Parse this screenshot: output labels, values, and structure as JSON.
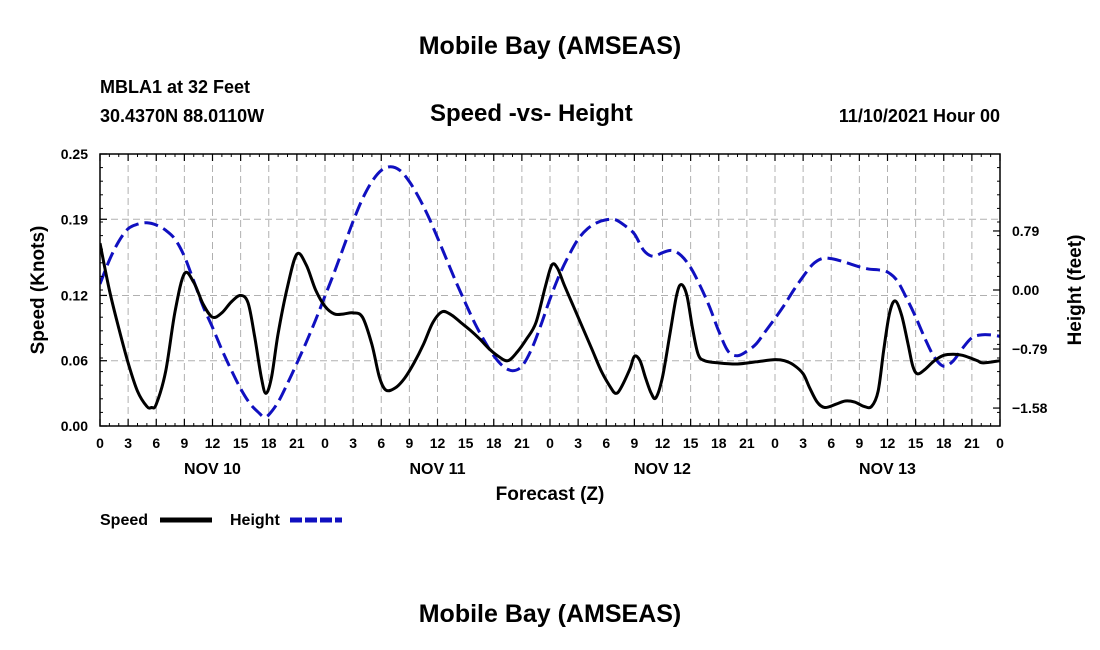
{
  "header": {
    "title": "Mobile Bay (AMSEAS)",
    "station": "MBLA1 at 32 Feet",
    "coords": "30.4370N  88.0110W",
    "run": "11/10/2021 Hour 00"
  },
  "footer": {
    "title": "Mobile Bay (AMSEAS)"
  },
  "chart_data": {
    "type": "line",
    "title": "Speed -vs- Height",
    "xlabel": "Forecast (Z)",
    "ylabel": "Speed (Knots)",
    "y2label": "Height (feet)",
    "xlim": [
      0,
      96
    ],
    "ylim": [
      0,
      0.25
    ],
    "y2lim": [
      -1.82,
      1.82
    ],
    "x_ticks": [
      0,
      3,
      6,
      9,
      12,
      15,
      18,
      21,
      24,
      27,
      30,
      33,
      36,
      39,
      42,
      45,
      48,
      51,
      54,
      57,
      60,
      63,
      66,
      69,
      72,
      75,
      78,
      81,
      84,
      87,
      90,
      93,
      96
    ],
    "x_tick_labels": [
      "0",
      "3",
      "6",
      "9",
      "12",
      "15",
      "18",
      "21",
      "0",
      "3",
      "6",
      "9",
      "12",
      "15",
      "18",
      "21",
      "0",
      "3",
      "6",
      "9",
      "12",
      "15",
      "18",
      "21",
      "0",
      "3",
      "6",
      "9",
      "12",
      "15",
      "18",
      "21",
      "0"
    ],
    "day_labels": [
      {
        "x": 12,
        "label": "NOV 10"
      },
      {
        "x": 36,
        "label": "NOV 11"
      },
      {
        "x": 60,
        "label": "NOV 12"
      },
      {
        "x": 84,
        "label": "NOV 13"
      }
    ],
    "y_ticks": [
      0.0,
      0.06,
      0.12,
      0.19,
      0.25
    ],
    "y_tick_labels": [
      "0.00",
      "0.06",
      "0.12",
      "0.19",
      "0.25"
    ],
    "y2_ticks": [
      -1.58,
      -0.79,
      0.0,
      0.79
    ],
    "y2_tick_labels": [
      "−1.58",
      "−0.79",
      "0.00",
      "0.79"
    ],
    "grid": true,
    "series": [
      {
        "name": "Speed",
        "axis": "left",
        "color": "#000000",
        "style": "solid",
        "points": [
          [
            0,
            0.168
          ],
          [
            1,
            0.125
          ],
          [
            2,
            0.09
          ],
          [
            3,
            0.058
          ],
          [
            4,
            0.032
          ],
          [
            5,
            0.018
          ],
          [
            5.5,
            0.017
          ],
          [
            6,
            0.02
          ],
          [
            7,
            0.05
          ],
          [
            8,
            0.105
          ],
          [
            9,
            0.14
          ],
          [
            10,
            0.132
          ],
          [
            11,
            0.112
          ],
          [
            12,
            0.1
          ],
          [
            13,
            0.104
          ],
          [
            14,
            0.114
          ],
          [
            15,
            0.12
          ],
          [
            15.8,
            0.113
          ],
          [
            16.5,
            0.082
          ],
          [
            17.2,
            0.045
          ],
          [
            17.7,
            0.03
          ],
          [
            18.3,
            0.045
          ],
          [
            19,
            0.085
          ],
          [
            20,
            0.128
          ],
          [
            21,
            0.158
          ],
          [
            22,
            0.148
          ],
          [
            23,
            0.125
          ],
          [
            24,
            0.11
          ],
          [
            25,
            0.103
          ],
          [
            26,
            0.103
          ],
          [
            27,
            0.104
          ],
          [
            28,
            0.1
          ],
          [
            29,
            0.075
          ],
          [
            29.8,
            0.045
          ],
          [
            30.5,
            0.033
          ],
          [
            31.5,
            0.035
          ],
          [
            32.5,
            0.044
          ],
          [
            33.5,
            0.058
          ],
          [
            34.5,
            0.075
          ],
          [
            35.5,
            0.095
          ],
          [
            36.5,
            0.105
          ],
          [
            37.5,
            0.102
          ],
          [
            38.5,
            0.095
          ],
          [
            39.5,
            0.088
          ],
          [
            40.5,
            0.08
          ],
          [
            41.5,
            0.071
          ],
          [
            42.5,
            0.064
          ],
          [
            43.5,
            0.06
          ],
          [
            44.5,
            0.068
          ],
          [
            45.5,
            0.08
          ],
          [
            46.5,
            0.095
          ],
          [
            47.5,
            0.128
          ],
          [
            48.2,
            0.148
          ],
          [
            48.8,
            0.145
          ],
          [
            49.5,
            0.13
          ],
          [
            50.5,
            0.11
          ],
          [
            51.5,
            0.09
          ],
          [
            52.5,
            0.07
          ],
          [
            53.5,
            0.05
          ],
          [
            54.5,
            0.035
          ],
          [
            55,
            0.03
          ],
          [
            55.5,
            0.034
          ],
          [
            56.5,
            0.052
          ],
          [
            57,
            0.064
          ],
          [
            57.6,
            0.06
          ],
          [
            58.2,
            0.044
          ],
          [
            58.8,
            0.03
          ],
          [
            59.3,
            0.026
          ],
          [
            60,
            0.045
          ],
          [
            60.8,
            0.085
          ],
          [
            61.5,
            0.12
          ],
          [
            62,
            0.13
          ],
          [
            62.6,
            0.12
          ],
          [
            63.2,
            0.09
          ],
          [
            63.8,
            0.066
          ],
          [
            64.5,
            0.06
          ],
          [
            66,
            0.058
          ],
          [
            68,
            0.057
          ],
          [
            70,
            0.059
          ],
          [
            72,
            0.061
          ],
          [
            73,
            0.06
          ],
          [
            74,
            0.056
          ],
          [
            75,
            0.048
          ],
          [
            75.7,
            0.035
          ],
          [
            76.5,
            0.022
          ],
          [
            77.3,
            0.017
          ],
          [
            78.5,
            0.02
          ],
          [
            79.5,
            0.023
          ],
          [
            80.5,
            0.022
          ],
          [
            81.5,
            0.018
          ],
          [
            82.3,
            0.018
          ],
          [
            83,
            0.032
          ],
          [
            83.6,
            0.07
          ],
          [
            84.2,
            0.103
          ],
          [
            84.8,
            0.115
          ],
          [
            85.5,
            0.102
          ],
          [
            86.2,
            0.075
          ],
          [
            86.7,
            0.055
          ],
          [
            87.2,
            0.048
          ],
          [
            88,
            0.052
          ],
          [
            89,
            0.06
          ],
          [
            90,
            0.065
          ],
          [
            91,
            0.066
          ],
          [
            92,
            0.065
          ],
          [
            93,
            0.062
          ],
          [
            93.6,
            0.06
          ],
          [
            94.2,
            0.058
          ],
          [
            96,
            0.06
          ]
        ]
      },
      {
        "name": "Height",
        "axis": "right",
        "color": "#1010c0",
        "style": "dashed",
        "points": [
          [
            0,
            0.08
          ],
          [
            1,
            0.4
          ],
          [
            2,
            0.65
          ],
          [
            3,
            0.82
          ],
          [
            4,
            0.88
          ],
          [
            5,
            0.9
          ],
          [
            6,
            0.87
          ],
          [
            7,
            0.8
          ],
          [
            8,
            0.68
          ],
          [
            9,
            0.45
          ],
          [
            10,
            0.12
          ],
          [
            11,
            -0.22
          ],
          [
            12,
            -0.5
          ],
          [
            13,
            -0.8
          ],
          [
            14,
            -1.07
          ],
          [
            15,
            -1.32
          ],
          [
            16,
            -1.52
          ],
          [
            17,
            -1.65
          ],
          [
            17.5,
            -1.7
          ],
          [
            18,
            -1.67
          ],
          [
            19,
            -1.5
          ],
          [
            20,
            -1.25
          ],
          [
            21,
            -0.98
          ],
          [
            22,
            -0.7
          ],
          [
            23,
            -0.4
          ],
          [
            24,
            -0.08
          ],
          [
            25,
            0.24
          ],
          [
            26,
            0.58
          ],
          [
            27,
            0.92
          ],
          [
            28,
            1.22
          ],
          [
            29,
            1.45
          ],
          [
            30,
            1.6
          ],
          [
            31,
            1.65
          ],
          [
            32,
            1.6
          ],
          [
            33,
            1.45
          ],
          [
            34,
            1.24
          ],
          [
            35,
            0.99
          ],
          [
            36,
            0.7
          ],
          [
            37,
            0.4
          ],
          [
            38,
            0.1
          ],
          [
            39,
            -0.18
          ],
          [
            40,
            -0.45
          ],
          [
            41,
            -0.68
          ],
          [
            42,
            -0.88
          ],
          [
            43,
            -1.02
          ],
          [
            44,
            -1.08
          ],
          [
            45,
            -1.02
          ],
          [
            46,
            -0.8
          ],
          [
            47,
            -0.48
          ],
          [
            48,
            -0.12
          ],
          [
            49,
            0.2
          ],
          [
            50,
            0.46
          ],
          [
            51,
            0.68
          ],
          [
            52,
            0.82
          ],
          [
            53,
            0.9
          ],
          [
            54,
            0.94
          ],
          [
            55,
            0.94
          ],
          [
            56,
            0.86
          ],
          [
            57,
            0.75
          ],
          [
            58,
            0.53
          ],
          [
            59,
            0.45
          ],
          [
            60,
            0.5
          ],
          [
            61,
            0.53
          ],
          [
            62,
            0.46
          ],
          [
            63,
            0.3
          ],
          [
            64,
            0.06
          ],
          [
            65,
            -0.22
          ],
          [
            66,
            -0.55
          ],
          [
            67,
            -0.82
          ],
          [
            68,
            -0.88
          ],
          [
            69,
            -0.82
          ],
          [
            70,
            -0.72
          ],
          [
            71,
            -0.55
          ],
          [
            72,
            -0.38
          ],
          [
            73,
            -0.2
          ],
          [
            74,
            0
          ],
          [
            75,
            0.18
          ],
          [
            76,
            0.34
          ],
          [
            77,
            0.42
          ],
          [
            78,
            0.42
          ],
          [
            79,
            0.39
          ],
          [
            80,
            0.35
          ],
          [
            81,
            0.31
          ],
          [
            82,
            0.28
          ],
          [
            83,
            0.27
          ],
          [
            84,
            0.24
          ],
          [
            85,
            0.13
          ],
          [
            86,
            -0.1
          ],
          [
            87,
            -0.36
          ],
          [
            88,
            -0.65
          ],
          [
            89,
            -0.9
          ],
          [
            90,
            -1.02
          ],
          [
            91,
            -0.95
          ],
          [
            92,
            -0.78
          ],
          [
            93,
            -0.64
          ],
          [
            94,
            -0.6
          ],
          [
            95,
            -0.6
          ],
          [
            96,
            -0.62
          ]
        ]
      }
    ],
    "legend": {
      "position": "bottom-left",
      "entries": [
        {
          "label": "Speed",
          "color": "#000000",
          "style": "solid"
        },
        {
          "label": "Height",
          "color": "#1010c0",
          "style": "dashed"
        }
      ]
    }
  }
}
